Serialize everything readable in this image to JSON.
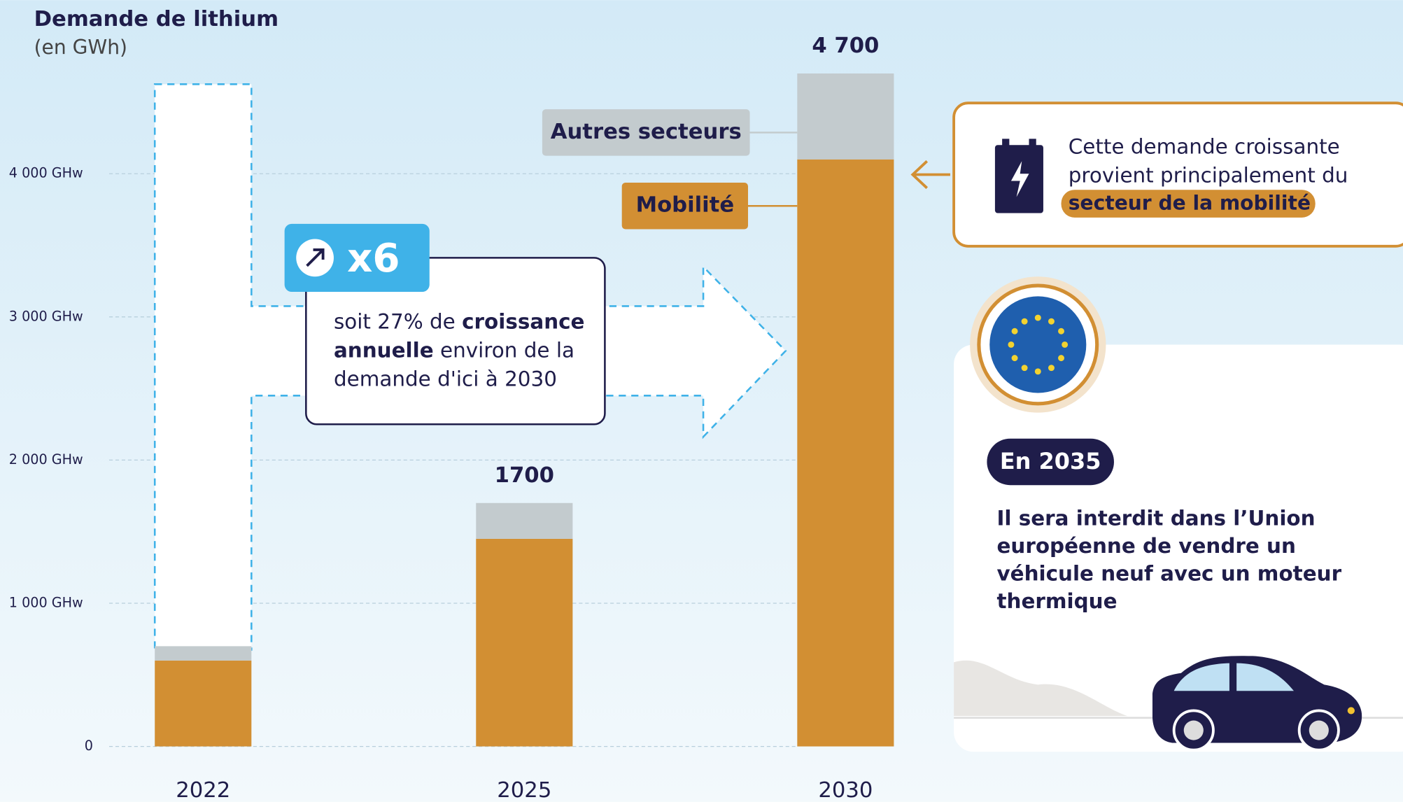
{
  "chart_data": {
    "type": "stacked_bar",
    "title": "Demande de lithium",
    "subtitle": "(en GWh)",
    "categories": [
      "2022",
      "2025",
      "2030"
    ],
    "series": [
      {
        "name": "Mobilité",
        "color": "#d28f33",
        "values": [
          600,
          1450,
          4100
        ]
      },
      {
        "name": "Autres secteurs",
        "color": "#c3cbce",
        "values": [
          100,
          250,
          600
        ]
      }
    ],
    "totals": [
      null,
      1700,
      4700
    ],
    "total_labels": [
      null,
      "1700",
      "4 700"
    ],
    "ylim": [
      0,
      5000
    ],
    "yticks": [
      0,
      {
        "value": 1000,
        "label": "1 000 GHw"
      },
      {
        "value": 2000,
        "label": "2 000 GHw"
      },
      {
        "value": 3000,
        "label": "3 000 GHw"
      },
      {
        "value": 4000,
        "label": "4 000 GHw"
      }
    ],
    "grid": true,
    "callout": {
      "badge": "x6",
      "lines": [
        [
          {
            "text": "soit 27% de ",
            "bold": false
          },
          {
            "text": "croissance",
            "bold": true
          }
        ],
        [
          {
            "text": "annuelle",
            "bold": true
          },
          {
            "text": " environ de la",
            "bold": false
          }
        ],
        [
          {
            "text": "demande d'ici à 2030",
            "bold": false
          }
        ]
      ]
    },
    "side_note": {
      "lines": [
        "Cette demande croissante",
        "provient principalement du"
      ],
      "highlight": "secteur de la mobilité"
    },
    "eu_panel": {
      "badge": "En 2035",
      "lines": [
        "Il sera interdit dans l’Union",
        "européenne de vendre un",
        "véhicule neuf avec un moteur",
        "thermique"
      ]
    }
  }
}
